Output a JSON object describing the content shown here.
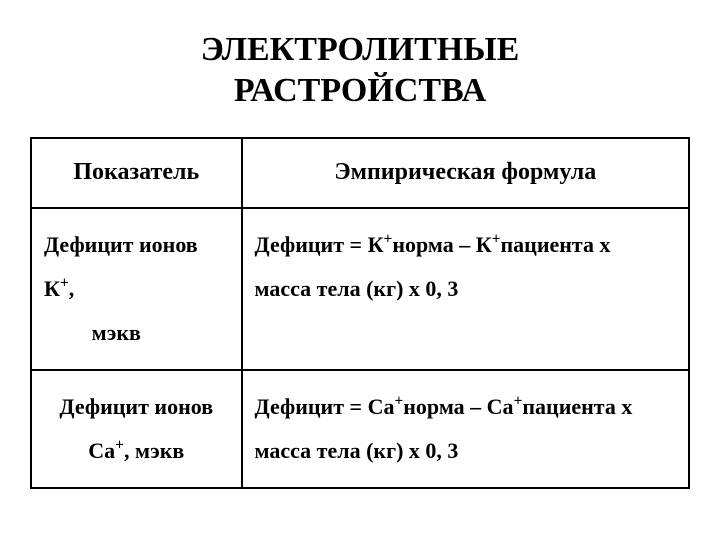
{
  "title_line1": "ЭЛЕКТРОЛИТНЫЕ",
  "title_line2": "РАСТРОЙСТВА",
  "table": {
    "header_col1": "Показатель",
    "header_col2": "Эмпирическая формула",
    "row1": {
      "param_prefix": "Дефицит ионов К",
      "param_sup": "+",
      "param_suffix": ",",
      "param_line2": "мэкв",
      "formula_prefix": "Дефицит = К",
      "formula_sup1": "+",
      "formula_mid1": "норма – К",
      "formula_sup2": "+",
      "formula_mid2": "пациента х",
      "formula_line2": "масса тела (кг) х 0, 3"
    },
    "row2": {
      "param_line1": "Дефицит ионов",
      "param_prefix2": "Са",
      "param_sup2": "+",
      "param_suffix2": ", мэкв",
      "formula_prefix": "Дефицит = Са",
      "formula_sup1": "+",
      "formula_mid1": "норма – Са",
      "formula_sup2": "+",
      "formula_mid2": "пациента х",
      "formula_line2": "масса тела (кг) х 0, 3"
    }
  },
  "style": {
    "font_family": "Times New Roman",
    "title_fontsize": 34,
    "header_fontsize": 24,
    "cell_fontsize": 22,
    "border_color": "#000000",
    "text_color": "#000000",
    "background_color": "#ffffff",
    "col_widths_pct": [
      32,
      68
    ]
  }
}
